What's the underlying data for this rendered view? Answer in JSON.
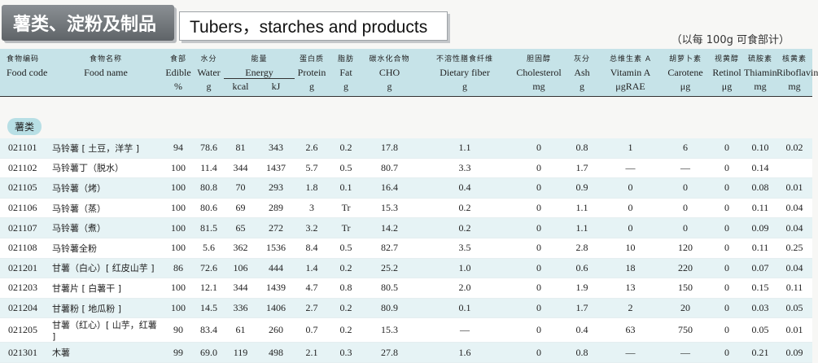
{
  "header": {
    "title_cn": "薯类、淀粉及制品",
    "title_en": "Tubers，starches and products",
    "unit_note": "（以每 100g 可食部计）"
  },
  "columns": [
    {
      "cn": "食物编码",
      "en": "Food code",
      "unit": ""
    },
    {
      "cn": "食物名称",
      "en": "Food name",
      "unit": ""
    },
    {
      "cn": "食部",
      "en": "Edible",
      "unit": "%"
    },
    {
      "cn": "水分",
      "en": "Water",
      "unit": "g"
    },
    {
      "cn": "能量",
      "en": "Energy",
      "unit": ""
    },
    {
      "cn": "蛋白质",
      "en": "Protein",
      "unit": "g"
    },
    {
      "cn": "脂肪",
      "en": "Fat",
      "unit": "g"
    },
    {
      "cn": "碳水化合物",
      "en": "CHO",
      "unit": "g"
    },
    {
      "cn": "不溶性膳食纤维",
      "en": "Dietary fiber",
      "unit": "g"
    },
    {
      "cn": "胆固醇",
      "en": "Cholesterol",
      "unit": "mg"
    },
    {
      "cn": "灰分",
      "en": "Ash",
      "unit": "g"
    },
    {
      "cn": "总维生素 A",
      "en": "Vitamin A",
      "unit": "μgRAE"
    },
    {
      "cn": "胡萝卜素",
      "en": "Carotene",
      "unit": "μg"
    },
    {
      "cn": "视黄醇",
      "en": "Retinol",
      "unit": "μg"
    },
    {
      "cn": "硫胺素",
      "en": "Thiamin",
      "unit": "mg"
    },
    {
      "cn": "核黄素",
      "en": "Riboflavin",
      "unit": "mg"
    }
  ],
  "energy_units": {
    "kcal": "kcal",
    "kj": "kJ"
  },
  "section_label": "薯类",
  "rows": [
    {
      "code": "021101",
      "name": "马铃薯 [ 土豆，洋芋 ]",
      "edible": "94",
      "water": "78.6",
      "kcal": "81",
      "kj": "343",
      "protein": "2.6",
      "fat": "0.2",
      "cho": "17.8",
      "fiber": "1.1",
      "chol": "0",
      "ash": "0.8",
      "vita": "1",
      "carotene": "6",
      "retinol": "0",
      "thiamin": "0.10",
      "riboflavin": "0.02"
    },
    {
      "code": "021102",
      "name": "马铃薯丁（脱水）",
      "edible": "100",
      "water": "11.4",
      "kcal": "344",
      "kj": "1437",
      "protein": "5.7",
      "fat": "0.5",
      "cho": "80.7",
      "fiber": "3.3",
      "chol": "0",
      "ash": "1.7",
      "vita": "—",
      "carotene": "—",
      "retinol": "0",
      "thiamin": "0.14",
      "riboflavin": ""
    },
    {
      "code": "021105",
      "name": "马铃薯（烤）",
      "edible": "100",
      "water": "80.8",
      "kcal": "70",
      "kj": "293",
      "protein": "1.8",
      "fat": "0.1",
      "cho": "16.4",
      "fiber": "0.4",
      "chol": "0",
      "ash": "0.9",
      "vita": "0",
      "carotene": "0",
      "retinol": "0",
      "thiamin": "0.08",
      "riboflavin": "0.01"
    },
    {
      "code": "021106",
      "name": "马铃薯（蒸）",
      "edible": "100",
      "water": "80.6",
      "kcal": "69",
      "kj": "289",
      "protein": "3",
      "fat": "Tr",
      "cho": "15.3",
      "fiber": "0.2",
      "chol": "0",
      "ash": "1.1",
      "vita": "0",
      "carotene": "0",
      "retinol": "0",
      "thiamin": "0.11",
      "riboflavin": "0.04"
    },
    {
      "code": "021107",
      "name": "马铃薯（煮）",
      "edible": "100",
      "water": "81.5",
      "kcal": "65",
      "kj": "272",
      "protein": "3.2",
      "fat": "Tr",
      "cho": "14.2",
      "fiber": "0.2",
      "chol": "0",
      "ash": "1.1",
      "vita": "0",
      "carotene": "0",
      "retinol": "0",
      "thiamin": "0.09",
      "riboflavin": "0.04"
    },
    {
      "code": "021108",
      "name": "马铃薯全粉",
      "edible": "100",
      "water": "5.6",
      "kcal": "362",
      "kj": "1536",
      "protein": "8.4",
      "fat": "0.5",
      "cho": "82.7",
      "fiber": "3.5",
      "chol": "0",
      "ash": "2.8",
      "vita": "10",
      "carotene": "120",
      "retinol": "0",
      "thiamin": "0.11",
      "riboflavin": "0.25"
    },
    {
      "code": "021201",
      "name": "甘薯（白心）[ 红皮山芋 ]",
      "edible": "86",
      "water": "72.6",
      "kcal": "106",
      "kj": "444",
      "protein": "1.4",
      "fat": "0.2",
      "cho": "25.2",
      "fiber": "1.0",
      "chol": "0",
      "ash": "0.6",
      "vita": "18",
      "carotene": "220",
      "retinol": "0",
      "thiamin": "0.07",
      "riboflavin": "0.04"
    },
    {
      "code": "021203",
      "name": "甘薯片 [ 白薯干 ]",
      "edible": "100",
      "water": "12.1",
      "kcal": "344",
      "kj": "1439",
      "protein": "4.7",
      "fat": "0.8",
      "cho": "80.5",
      "fiber": "2.0",
      "chol": "0",
      "ash": "1.9",
      "vita": "13",
      "carotene": "150",
      "retinol": "0",
      "thiamin": "0.15",
      "riboflavin": "0.11"
    },
    {
      "code": "021204",
      "name": "甘薯粉 [ 地瓜粉 ]",
      "edible": "100",
      "water": "14.5",
      "kcal": "336",
      "kj": "1406",
      "protein": "2.7",
      "fat": "0.2",
      "cho": "80.9",
      "fiber": "0.1",
      "chol": "0",
      "ash": "1.7",
      "vita": "2",
      "carotene": "20",
      "retinol": "0",
      "thiamin": "0.03",
      "riboflavin": "0.05"
    },
    {
      "code": "021205",
      "name": "甘薯（红心）[ 山芋，红薯 ]",
      "edible": "90",
      "water": "83.4",
      "kcal": "61",
      "kj": "260",
      "protein": "0.7",
      "fat": "0.2",
      "cho": "15.3",
      "fiber": "—",
      "chol": "0",
      "ash": "0.4",
      "vita": "63",
      "carotene": "750",
      "retinol": "0",
      "thiamin": "0.05",
      "riboflavin": "0.01"
    },
    {
      "code": "021301",
      "name": "木薯",
      "edible": "99",
      "water": "69.0",
      "kcal": "119",
      "kj": "498",
      "protein": "2.1",
      "fat": "0.3",
      "cho": "27.8",
      "fiber": "1.6",
      "chol": "0",
      "ash": "0.8",
      "vita": "—",
      "carotene": "—",
      "retinol": "0",
      "thiamin": "0.21",
      "riboflavin": "0.09"
    }
  ]
}
